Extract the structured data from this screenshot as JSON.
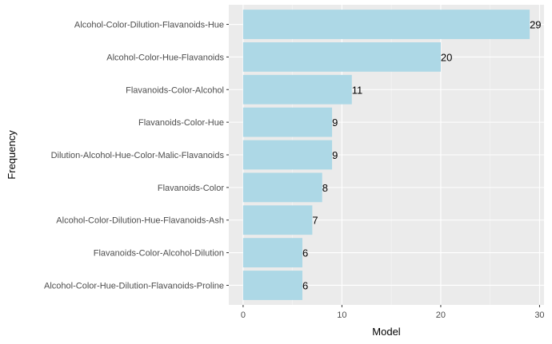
{
  "chart_data": {
    "type": "bar",
    "orientation": "horizontal",
    "categories": [
      "Alcohol-Color-Dilution-Flavanoids-Hue",
      "Alcohol-Color-Hue-Flavanoids",
      "Flavanoids-Color-Alcohol",
      "Flavanoids-Color-Hue",
      "Dilution-Alcohol-Hue-Color-Malic-Flavanoids",
      "Flavanoids-Color",
      "Alcohol-Color-Dilution-Hue-Flavanoids-Ash",
      "Flavanoids-Color-Alcohol-Dilution",
      "Alcohol-Color-Hue-Dilution-Flavanoids-Proline"
    ],
    "values": [
      29,
      20,
      11,
      9,
      9,
      8,
      7,
      6,
      6
    ],
    "data_labels": [
      "29",
      "20",
      "11",
      "9",
      "9",
      "8",
      "7",
      "6",
      "6"
    ],
    "xlabel": "Model",
    "ylabel": "Frequency",
    "xlim": [
      -1.45,
      30.45
    ],
    "xticks": [
      0,
      10,
      20,
      30
    ],
    "xtick_labels": [
      "0",
      "10",
      "20",
      "30"
    ],
    "grid": true,
    "colors": {
      "bar": "#add8e6",
      "panel": "#ebebeb",
      "grid_major": "#ffffff",
      "text": "#4d4d4d"
    }
  }
}
